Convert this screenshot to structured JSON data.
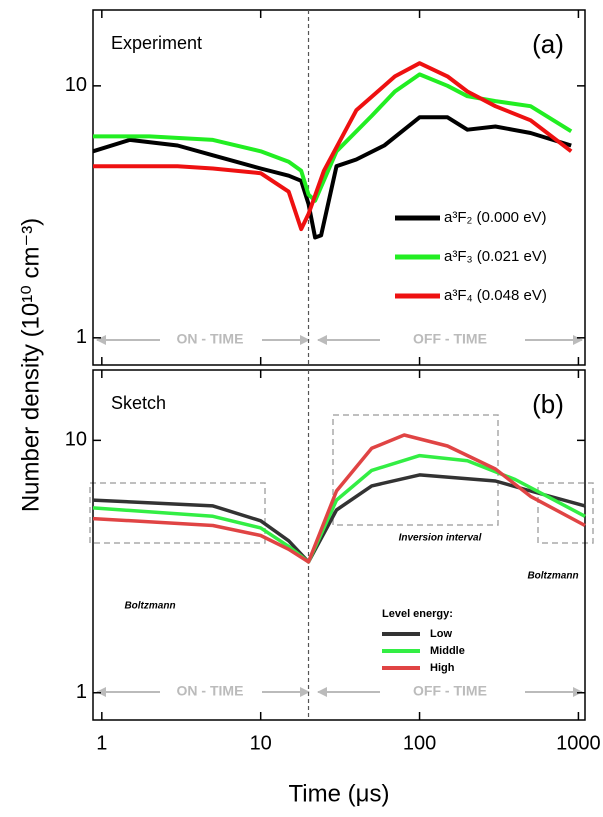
{
  "chart_data": [
    {
      "type": "line",
      "title": "Experiment",
      "panel_label": "(a)",
      "y_label": "Number density (10¹⁰ cm⁻³)",
      "log_x": true,
      "log_y": true,
      "vline": 20,
      "xlim": [
        0.88,
        1100
      ],
      "ylim": [
        0.78,
        20
      ],
      "xticks": [
        1,
        10,
        100,
        1000
      ],
      "yticks": [
        1,
        10
      ],
      "series": [
        {
          "name": "a³F₂ (0.000 eV)",
          "color": "#000000",
          "x": [
            0.88,
            1.5,
            3,
            5,
            10,
            15,
            18,
            20,
            22,
            24,
            30,
            40,
            60,
            100,
            150,
            200,
            300,
            500,
            900
          ],
          "values": [
            5.5,
            6.1,
            5.8,
            5.3,
            4.7,
            4.4,
            4.2,
            3.4,
            2.5,
            2.55,
            4.8,
            5.1,
            5.8,
            7.5,
            7.5,
            6.7,
            6.9,
            6.5,
            5.8
          ]
        },
        {
          "name": "a³F₃ (0.021 eV)",
          "color": "#22ee22",
          "x": [
            0.88,
            2,
            5,
            10,
            15,
            18,
            20,
            22,
            30,
            50,
            70,
            100,
            150,
            200,
            300,
            500,
            900
          ],
          "values": [
            6.3,
            6.3,
            6.1,
            5.5,
            5.0,
            4.6,
            3.7,
            3.5,
            5.5,
            7.6,
            9.5,
            11.1,
            10,
            9.1,
            8.7,
            8.3,
            6.6
          ]
        },
        {
          "name": "a³F₄ (0.048 eV)",
          "color": "#ee1111",
          "x": [
            0.88,
            3,
            5,
            10,
            15,
            18,
            20,
            25,
            40,
            70,
            100,
            150,
            200,
            300,
            500,
            900
          ],
          "values": [
            4.8,
            4.8,
            4.7,
            4.5,
            3.8,
            2.7,
            3.1,
            4.6,
            8.0,
            10.9,
            12.3,
            10.9,
            9.5,
            8.3,
            7.3,
            5.5
          ]
        }
      ],
      "annotations": [
        "ON - TIME",
        "OFF - TIME"
      ]
    },
    {
      "type": "line",
      "title": "Sketch",
      "panel_label": "(b)",
      "x_label": "Time (μs)",
      "log_x": true,
      "log_y": true,
      "vline": 20,
      "xlim": [
        0.88,
        1100
      ],
      "ylim": [
        0.78,
        19
      ],
      "xticks": [
        1,
        10,
        100,
        1000
      ],
      "yticks": [
        1,
        10
      ],
      "legend_title": "Level energy:",
      "series": [
        {
          "name": "Low",
          "color": "#333333",
          "x": [
            0.88,
            5,
            10,
            15,
            20,
            30,
            50,
            100,
            300,
            500,
            1100
          ],
          "values": [
            5.8,
            5.5,
            4.8,
            4.0,
            3.3,
            5.3,
            6.6,
            7.3,
            6.9,
            6.3,
            5.5
          ]
        },
        {
          "name": "Middle",
          "color": "#33ee44",
          "x": [
            0.88,
            5,
            10,
            15,
            20,
            30,
            50,
            100,
            200,
            400,
            1100
          ],
          "values": [
            5.4,
            5.0,
            4.5,
            3.8,
            3.3,
            5.8,
            7.6,
            8.7,
            8.3,
            7.0,
            5.0
          ]
        },
        {
          "name": "High",
          "color": "#e04444",
          "x": [
            0.88,
            5,
            10,
            15,
            20,
            30,
            50,
            80,
            150,
            300,
            500,
            1100
          ],
          "values": [
            4.9,
            4.6,
            4.2,
            3.7,
            3.3,
            6.3,
            9.3,
            10.5,
            9.5,
            7.7,
            6.0,
            4.6
          ]
        }
      ],
      "annotations": [
        "ON - TIME",
        "OFF - TIME",
        "Boltzmann",
        "Inversion interval",
        "Boltzmann"
      ]
    }
  ]
}
